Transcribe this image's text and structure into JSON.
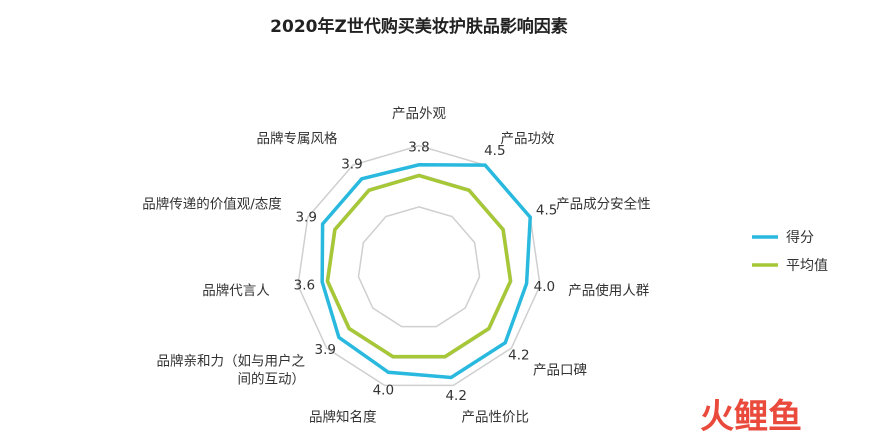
{
  "chart_data": {
    "type": "radar",
    "title": "2020年Z世代购买美妆护肤品影响因素",
    "categories": [
      "产品外观",
      "产品功效",
      "产品成分安全性",
      "产品使用人群",
      "产品口碑",
      "产品性价比",
      "品牌知名度",
      "品牌亲和力（如与用户之间的互动）",
      "品牌代言人",
      "品牌传递的价值观/态度",
      "品牌专属风格"
    ],
    "category_display": [
      [
        "产品外观"
      ],
      [
        "产品功效"
      ],
      [
        "产品成分安全性"
      ],
      [
        "产品使用人群"
      ],
      [
        "产品口碑"
      ],
      [
        "产品性价比"
      ],
      [
        "品牌知名度"
      ],
      [
        "品牌亲和力（如与用户之",
        "间的互动）"
      ],
      [
        "品牌代言人"
      ],
      [
        "品牌传递的价值观/态度"
      ],
      [
        "品牌专属风格"
      ]
    ],
    "series": [
      {
        "name": "得分",
        "color": "#29b9de",
        "values": [
          3.8,
          4.5,
          4.5,
          4.0,
          4.2,
          4.2,
          4.0,
          3.9,
          3.6,
          3.9,
          3.9
        ]
      },
      {
        "name": "平均值",
        "color": "#a6c736",
        "values": [
          3.4,
          3.4,
          3.4,
          3.4,
          3.4,
          3.4,
          3.4,
          3.4,
          3.4,
          3.4,
          3.4
        ]
      }
    ],
    "value_labels": [
      "3.8",
      "4.5",
      "4.5",
      "4.0",
      "4.2",
      "4.2",
      "4.0",
      "3.9",
      "3.6",
      "3.9",
      "3.9"
    ],
    "grid_color": "#cfcfcf",
    "legend_position": "right"
  },
  "watermark": {
    "text": "火鲤鱼",
    "color": "#e94a3c"
  }
}
